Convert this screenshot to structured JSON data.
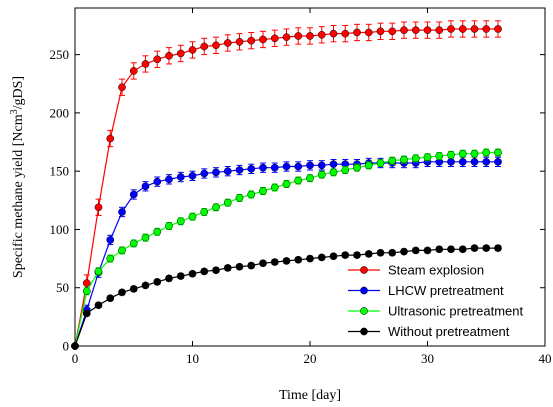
{
  "chart_data": {
    "type": "scatter",
    "xlabel": "Time [day]",
    "ylabel_main": "Specific methane yield [Ncm",
    "ylabel_sup": "3",
    "ylabel_tail": "/gDS]",
    "xlim": [
      0,
      40
    ],
    "ylim": [
      0,
      290
    ],
    "xticks": [
      0,
      10,
      20,
      30,
      40
    ],
    "yticks": [
      0,
      50,
      100,
      150,
      200,
      250
    ],
    "grid": false,
    "legend_position": "bottom-right",
    "series": [
      {
        "name": "Steam explosion",
        "color": "#ff0000",
        "errorbar": 7,
        "x": [
          0,
          1,
          2,
          3,
          4,
          5,
          6,
          7,
          8,
          9,
          10,
          11,
          12,
          13,
          14,
          15,
          16,
          17,
          18,
          19,
          20,
          21,
          22,
          23,
          24,
          25,
          26,
          27,
          28,
          29,
          30,
          31,
          32,
          33,
          34,
          35,
          36
        ],
        "y": [
          0,
          54,
          119,
          178,
          222,
          236,
          242,
          246,
          249,
          251,
          254,
          257,
          258,
          260,
          261,
          262,
          263,
          264,
          265,
          266,
          266,
          267,
          268,
          268,
          269,
          269,
          270,
          270,
          271,
          271,
          271,
          271,
          272,
          272,
          272,
          272,
          272
        ]
      },
      {
        "name": "LHCW pretreatment",
        "color": "#0000ff",
        "errorbar": 4,
        "x": [
          0,
          1,
          2,
          3,
          4,
          5,
          6,
          7,
          8,
          9,
          10,
          11,
          12,
          13,
          14,
          15,
          16,
          17,
          18,
          19,
          20,
          21,
          22,
          23,
          24,
          25,
          26,
          27,
          28,
          29,
          30,
          31,
          32,
          33,
          34,
          35,
          36
        ],
        "y": [
          0,
          31,
          63,
          91,
          115,
          130,
          137,
          141,
          143,
          145,
          146,
          148,
          149,
          150,
          151,
          152,
          153,
          153,
          154,
          154,
          155,
          155,
          156,
          156,
          156,
          157,
          157,
          157,
          157,
          157,
          158,
          158,
          158,
          158,
          158,
          158,
          158
        ]
      },
      {
        "name": "Ultrasonic pretreatment",
        "color": "#00ff00",
        "errorbar": 3,
        "x": [
          0,
          1,
          2,
          3,
          4,
          5,
          6,
          7,
          8,
          9,
          10,
          11,
          12,
          13,
          14,
          15,
          16,
          17,
          18,
          19,
          20,
          21,
          22,
          23,
          24,
          25,
          26,
          27,
          28,
          29,
          30,
          31,
          32,
          33,
          34,
          35,
          36
        ],
        "y": [
          0,
          47,
          64,
          75,
          82,
          88,
          93,
          98,
          103,
          107,
          111,
          115,
          119,
          123,
          127,
          130,
          133,
          136,
          139,
          142,
          144,
          147,
          149,
          151,
          153,
          155,
          157,
          159,
          160,
          161,
          162,
          163,
          164,
          165,
          165,
          166,
          166
        ]
      },
      {
        "name": "Without pretreatment",
        "color": "#000000",
        "errorbar": 2,
        "x": [
          0,
          1,
          2,
          3,
          4,
          5,
          6,
          7,
          8,
          9,
          10,
          11,
          12,
          13,
          14,
          15,
          16,
          17,
          18,
          19,
          20,
          21,
          22,
          23,
          24,
          25,
          26,
          27,
          28,
          29,
          30,
          31,
          32,
          33,
          34,
          35,
          36
        ],
        "y": [
          0,
          28,
          35,
          41,
          46,
          49,
          52,
          55,
          58,
          60,
          62,
          64,
          65,
          67,
          68,
          69,
          71,
          72,
          73,
          74,
          75,
          76,
          77,
          78,
          78,
          79,
          80,
          80,
          81,
          82,
          82,
          83,
          83,
          83,
          84,
          84,
          84
        ]
      }
    ]
  }
}
